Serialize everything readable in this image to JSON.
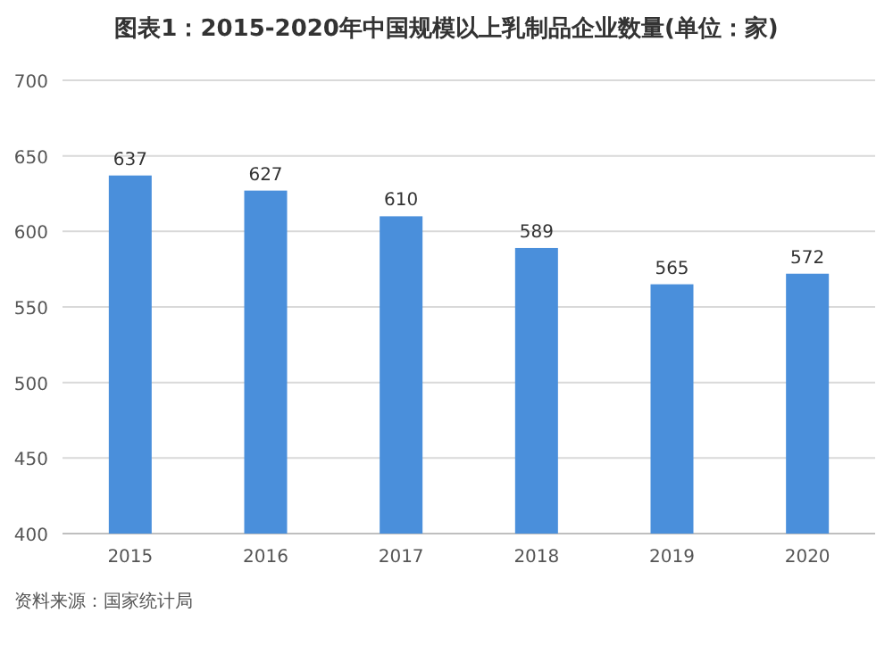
{
  "chart_data": {
    "type": "bar",
    "title": "图表1：2015-2020年中国规模以上乳制品企业数量(单位：家)",
    "categories": [
      "2015",
      "2016",
      "2017",
      "2018",
      "2019",
      "2020"
    ],
    "values": [
      637,
      627,
      610,
      589,
      565,
      572
    ],
    "color": "#4a8fdb",
    "ylim": [
      400,
      700
    ],
    "yticks": [
      400,
      450,
      500,
      550,
      600,
      650,
      700
    ],
    "grid": "y",
    "data_labels": true,
    "annotations": [
      "资料来源：国家统计局"
    ]
  }
}
